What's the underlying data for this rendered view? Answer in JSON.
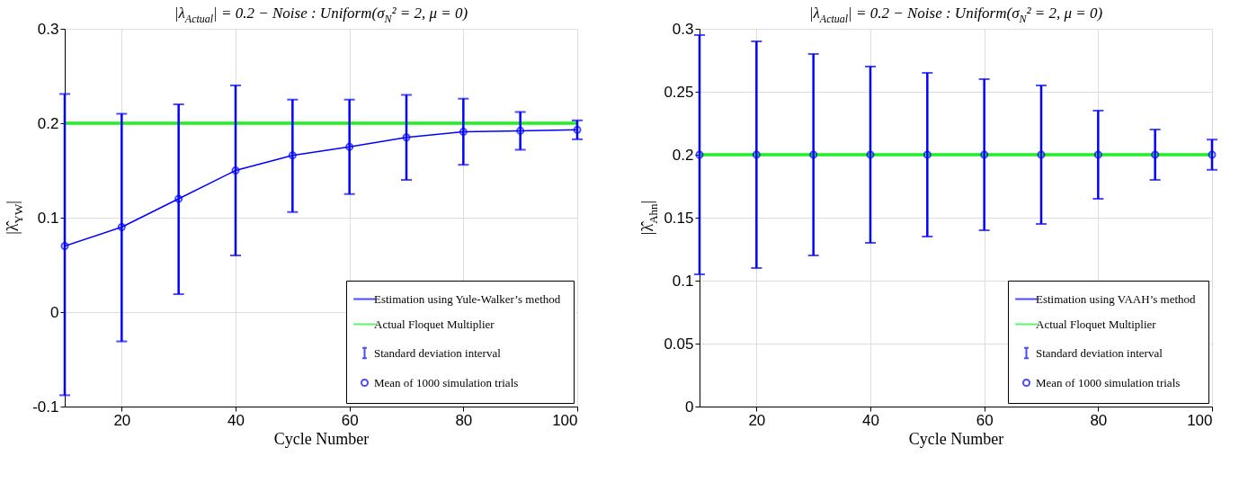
{
  "chart_data": [
    {
      "type": "line",
      "title": "|λ$_{Actual}$| = 0.2 − Noise : Uniform(σ$_{N}$² = 2, μ = 0)",
      "xlabel": "Cycle Number",
      "ylabel": "|λ̂$_{YW}$|",
      "x": [
        10,
        20,
        30,
        40,
        50,
        60,
        70,
        80,
        90,
        100
      ],
      "xlim": [
        10,
        100
      ],
      "xticks": [
        20,
        40,
        60,
        80,
        100
      ],
      "ylim": [
        -0.1,
        0.3
      ],
      "yticks": [
        -0.1,
        0,
        0.1,
        0.2,
        0.3
      ],
      "grid": true,
      "legend": "bottom right",
      "annotations": [
        "Standard deviation interval"
      ],
      "series": [
        {
          "name": "Estimation using Yule-Walker’s method",
          "marker": "none",
          "color": "#0000ff",
          "values": [
            0.07,
            0.09,
            0.12,
            0.15,
            0.166,
            0.175,
            0.185,
            0.191,
            0.192,
            0.193
          ]
        },
        {
          "name": "Actual Floquet Multiplier",
          "marker": "none",
          "color": "#22ee22",
          "values": [
            0.2,
            0.2,
            0.2,
            0.2,
            0.2,
            0.2,
            0.2,
            0.2,
            0.2,
            0.2
          ]
        },
        {
          "name": "Mean of 1000 simulation trials",
          "type": "scatter",
          "color": "#0000ff",
          "marker": "circle",
          "values": [
            0.07,
            0.09,
            0.12,
            0.15,
            0.166,
            0.175,
            0.185,
            0.191,
            0.192,
            0.193
          ],
          "errors": [
            [
              -0.088,
              0.231
            ],
            [
              -0.031,
              0.21
            ],
            [
              0.019,
              0.22
            ],
            [
              0.06,
              0.24
            ],
            [
              0.106,
              0.225
            ],
            [
              0.125,
              0.225
            ],
            [
              0.14,
              0.23
            ],
            [
              0.156,
              0.226
            ],
            [
              0.172,
              0.212
            ],
            [
              0.183,
              0.203
            ]
          ]
        }
      ]
    },
    {
      "type": "line",
      "title": "|λ$_{Actual}$| = 0.2 − Noise : Uniform(σ$_{N}$² = 2, μ = 0)",
      "xlabel": "Cycle Number",
      "ylabel": "|λ̂$_{Ahn}$|",
      "x": [
        10,
        20,
        30,
        40,
        50,
        60,
        70,
        80,
        90,
        100
      ],
      "xlim": [
        10,
        100
      ],
      "xticks": [
        20,
        40,
        60,
        80,
        100
      ],
      "ylim": [
        0,
        0.3
      ],
      "yticks": [
        0,
        0.05,
        0.1,
        0.15,
        0.2,
        0.25,
        0.3
      ],
      "grid": true,
      "legend": "bottom right",
      "annotations": [
        "Standard deviation interval"
      ],
      "series": [
        {
          "name": "Estimation using VAAH’s method",
          "marker": "none",
          "color": "#0000ff",
          "values": [
            0.2,
            0.2,
            0.2,
            0.2,
            0.2,
            0.2,
            0.2,
            0.2,
            0.2,
            0.2
          ]
        },
        {
          "name": "Actual Floquet Multiplier",
          "marker": "none",
          "color": "#22ee22",
          "values": [
            0.2,
            0.2,
            0.2,
            0.2,
            0.2,
            0.2,
            0.2,
            0.2,
            0.2,
            0.2
          ]
        },
        {
          "name": "Mean of 1000 simulation trials",
          "type": "scatter",
          "color": "#0000ff",
          "marker": "circle",
          "values": [
            0.2,
            0.2,
            0.2,
            0.2,
            0.2,
            0.2,
            0.2,
            0.2,
            0.2,
            0.2
          ],
          "errors": [
            [
              0.105,
              0.295
            ],
            [
              0.11,
              0.29
            ],
            [
              0.12,
              0.28
            ],
            [
              0.13,
              0.27
            ],
            [
              0.135,
              0.265
            ],
            [
              0.14,
              0.26
            ],
            [
              0.145,
              0.255
            ],
            [
              0.165,
              0.235
            ],
            [
              0.18,
              0.22
            ],
            [
              0.188,
              0.212
            ]
          ]
        }
      ]
    }
  ]
}
